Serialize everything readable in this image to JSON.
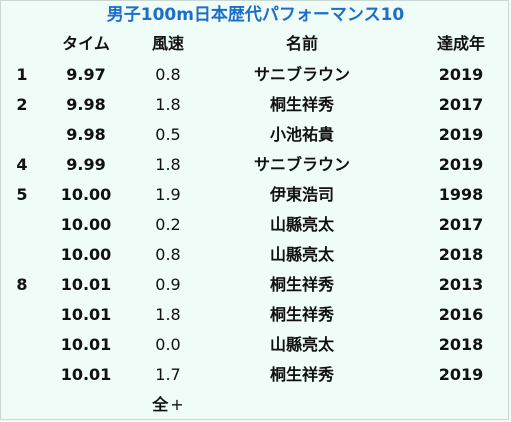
{
  "title": "男子100m日本歴代パフォーマンス10",
  "headers": {
    "rank": "",
    "time": "タイム",
    "wind": "風速",
    "name": "名前",
    "year": "達成年"
  },
  "rows": [
    {
      "rank": "1",
      "time": "9.97",
      "wind": "0.8",
      "name": "サニブラウン",
      "year": "2019"
    },
    {
      "rank": "2",
      "time": "9.98",
      "wind": "1.8",
      "name": "桐生祥秀",
      "year": "2017"
    },
    {
      "rank": "",
      "time": "9.98",
      "wind": "0.5",
      "name": "小池祐貴",
      "year": "2019"
    },
    {
      "rank": "4",
      "time": "9.99",
      "wind": "1.8",
      "name": "サニブラウン",
      "year": "2019"
    },
    {
      "rank": "5",
      "time": "10.00",
      "wind": "1.9",
      "name": "伊東浩司",
      "year": "1998"
    },
    {
      "rank": "",
      "time": "10.00",
      "wind": "0.2",
      "name": "山縣亮太",
      "year": "2017"
    },
    {
      "rank": "",
      "time": "10.00",
      "wind": "0.8",
      "name": "山縣亮太",
      "year": "2018"
    },
    {
      "rank": "8",
      "time": "10.01",
      "wind": "0.9",
      "name": "桐生祥秀",
      "year": "2013"
    },
    {
      "rank": "",
      "time": "10.01",
      "wind": "1.8",
      "name": "桐生祥秀",
      "year": "2016"
    },
    {
      "rank": "",
      "time": "10.01",
      "wind": "0.0",
      "name": "山縣亮太",
      "year": "2018"
    },
    {
      "rank": "",
      "time": "10.01",
      "wind": "1.7",
      "name": "桐生祥秀",
      "year": "2019"
    }
  ],
  "footer": {
    "label": "全",
    "expand_glyph": "+"
  },
  "colors": {
    "title": "#1c6fc7",
    "background": "#eefbf6"
  }
}
